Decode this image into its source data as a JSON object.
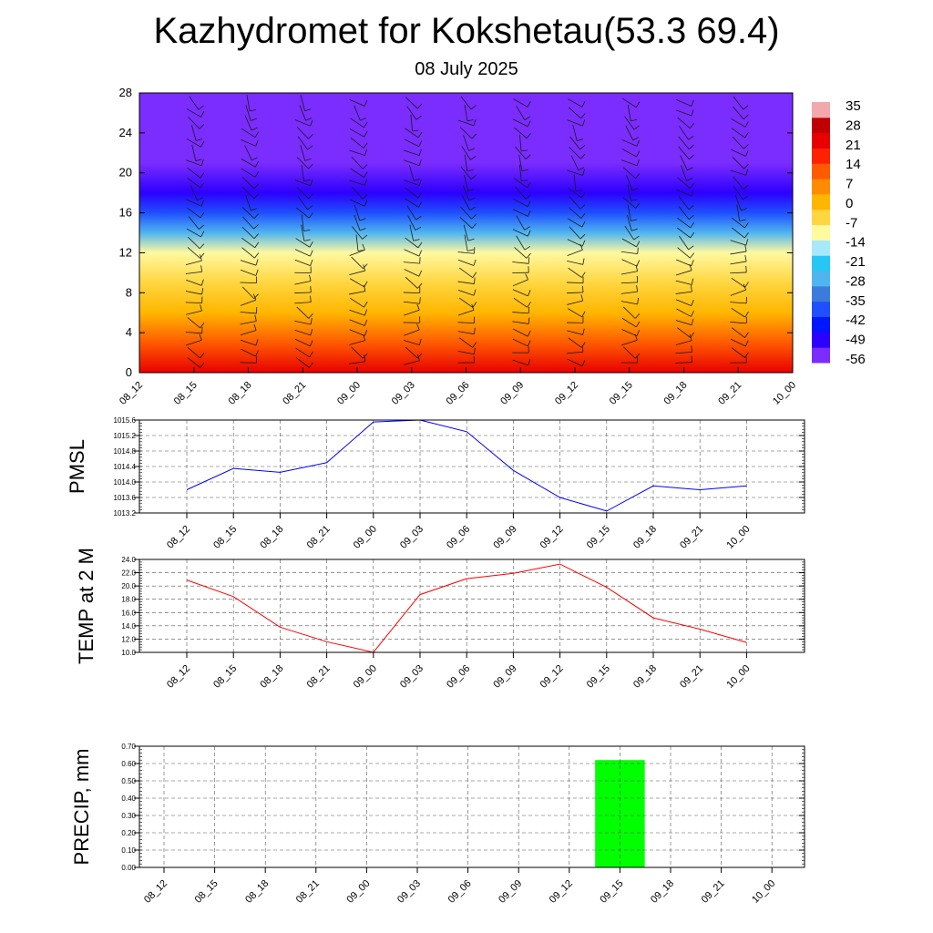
{
  "header": {
    "title": "Kazhydromet for Kokshetau(53.3 69.4)",
    "subtitle": "08 July 2025"
  },
  "chart_data": [
    {
      "type": "heatmap",
      "title": "",
      "xlabel": "",
      "ylabel": "",
      "x_ticks": [
        "08_12",
        "08_15",
        "08_18",
        "08_21",
        "09_00",
        "09_03",
        "09_06",
        "09_09",
        "09_12",
        "09_15",
        "09_18",
        "09_21",
        "10_00"
      ],
      "y_ticks": [
        0,
        4,
        8,
        12,
        16,
        20,
        24,
        28
      ],
      "ylim": [
        0,
        28
      ],
      "colorbar_labels": [
        35,
        28,
        21,
        14,
        7,
        0,
        -7,
        -14,
        -21,
        -28,
        -35,
        -42,
        -49,
        -56
      ],
      "colorbar_range": [
        -60,
        37
      ],
      "temperature_profile": [
        {
          "height": 0,
          "value": 20
        },
        {
          "height": 3,
          "value": 12
        },
        {
          "height": 6,
          "value": 0
        },
        {
          "height": 9,
          "value": -8
        },
        {
          "height": 12,
          "value": -13
        },
        {
          "height": 14,
          "value": -28
        },
        {
          "height": 16,
          "value": -42
        },
        {
          "height": 18,
          "value": -50
        },
        {
          "height": 21,
          "value": -55
        },
        {
          "height": 28,
          "value": -60
        }
      ],
      "overlay": "wind barbs",
      "colors": {
        "colormap": [
          "#7b2cff",
          "#2c00ff",
          "#0016ff",
          "#1f4fff",
          "#3a7bdc",
          "#4fb5ef",
          "#27c6f5",
          "#a8e8fb",
          "#fff9a0",
          "#ffd640",
          "#ffb600",
          "#ff8c00",
          "#ff5a00",
          "#ff2200",
          "#e80000",
          "#c00000",
          "#f2a8ac"
        ],
        "barb": "#1a1a1a"
      }
    },
    {
      "type": "line",
      "title": "",
      "ylabel": "PMSL",
      "xlabel": "",
      "x": [
        "08_12",
        "08_15",
        "08_18",
        "08_21",
        "09_00",
        "09_03",
        "09_06",
        "09_09",
        "09_12",
        "09_15",
        "09_18",
        "09_21",
        "10_00"
      ],
      "series": [
        {
          "values": [
            1013.8,
            1014.35,
            1014.25,
            1014.5,
            1015.55,
            1015.6,
            1015.3,
            1014.3,
            1013.6,
            1013.25,
            1013.9,
            1013.8,
            1013.9
          ],
          "color": "#0000ff"
        }
      ],
      "ylim": [
        1013.2,
        1015.6
      ],
      "y_ticks": [
        "1013.2",
        "1013.6",
        "1014.0",
        "1014.4",
        "1014.8",
        "1015.2",
        "1015.6"
      ],
      "grid": true
    },
    {
      "type": "line",
      "title": "",
      "ylabel": "TEMP at 2 M",
      "xlabel": "",
      "x": [
        "08_12",
        "08_15",
        "08_18",
        "08_21",
        "09_00",
        "09_03",
        "09_06",
        "09_09",
        "09_12",
        "09_15",
        "09_18",
        "09_21",
        "10_00"
      ],
      "series": [
        {
          "values": [
            20.9,
            18.4,
            13.8,
            11.6,
            10.0,
            18.7,
            21.1,
            21.9,
            23.3,
            19.8,
            15.2,
            13.5,
            11.5
          ],
          "color": "#ff0000"
        }
      ],
      "ylim": [
        10.0,
        24.0
      ],
      "y_ticks": [
        "10.0",
        "12.0",
        "14.0",
        "16.0",
        "18.0",
        "20.0",
        "22.0",
        "24.0"
      ],
      "grid": true
    },
    {
      "type": "bar",
      "title": "",
      "ylabel": "PRECIP, mm",
      "xlabel": "",
      "categories": [
        "08_12",
        "08_15",
        "08_18",
        "08_21",
        "09_00",
        "09_03",
        "09_06",
        "09_09",
        "09_12",
        "09_15",
        "09_18",
        "09_21",
        "10_00"
      ],
      "values": [
        0,
        0,
        0,
        0,
        0,
        0,
        0,
        0,
        0,
        0.62,
        0,
        0,
        0
      ],
      "ylim": [
        0,
        0.7
      ],
      "y_ticks": [
        "0.00",
        "0.10",
        "0.20",
        "0.30",
        "0.40",
        "0.50",
        "0.60",
        "0.70"
      ],
      "color": "#00ff00",
      "grid": true
    }
  ]
}
